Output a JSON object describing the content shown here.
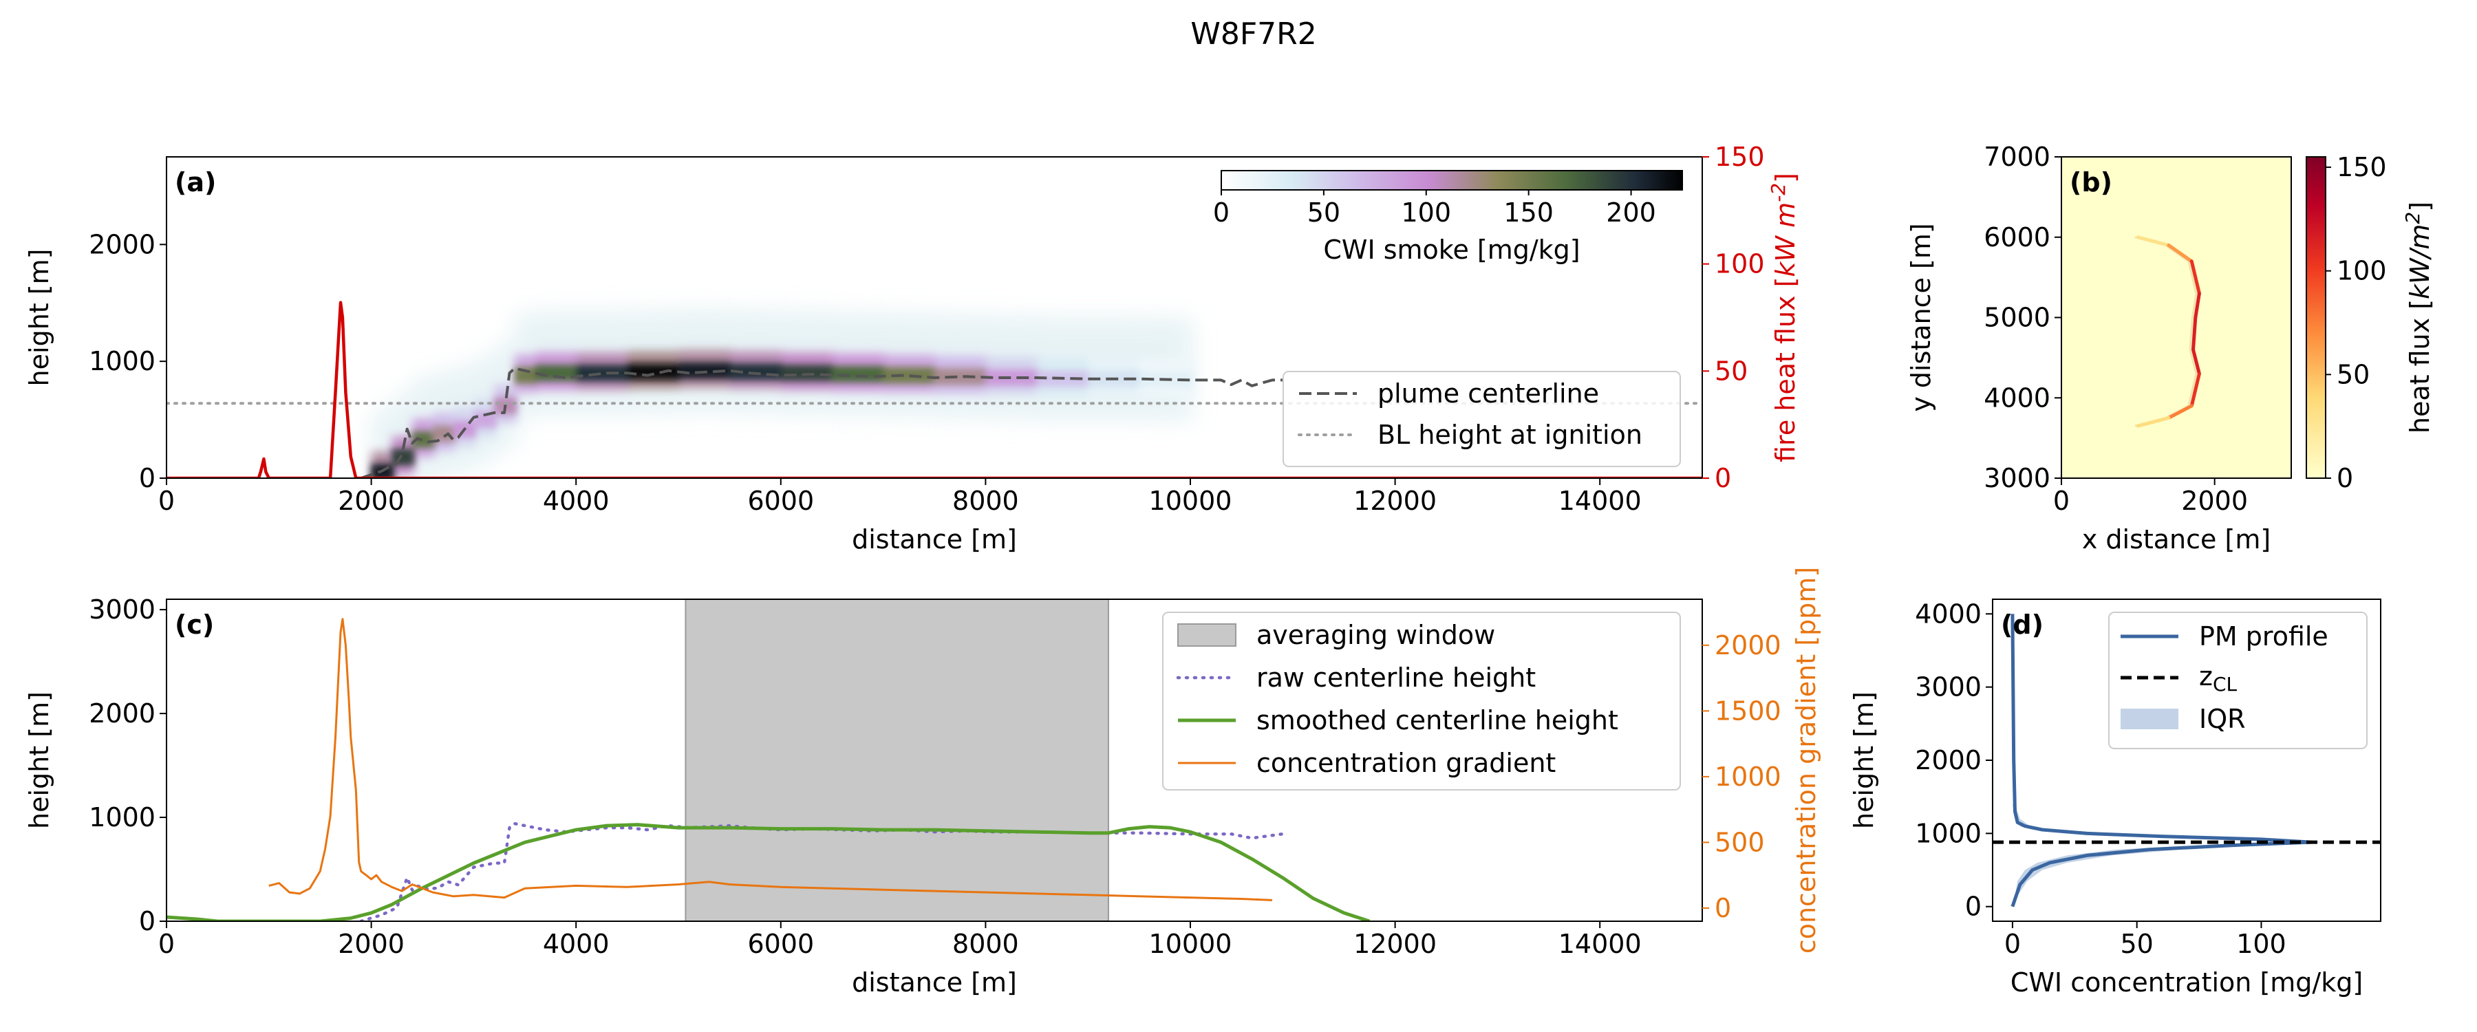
{
  "figure_title": "W8F7R2",
  "chart_data": [
    {
      "panel": "(a)",
      "type": "heatmap",
      "xlabel": "distance [m]",
      "ylabel": "height [m]",
      "y2label": "fire heat flux [kW m^-2]",
      "xlim": [
        0,
        15000
      ],
      "ylim": [
        0,
        2750
      ],
      "y2lim": [
        0,
        150
      ],
      "xticks": [
        0,
        2000,
        4000,
        6000,
        8000,
        10000,
        12000,
        14000
      ],
      "yticks": [
        0,
        1000,
        2000
      ],
      "y2ticks": [
        0,
        50,
        100,
        150
      ],
      "colorbar": {
        "label": "CWI smoke [mg/kg]",
        "ticks": [
          0,
          50,
          100,
          150,
          200
        ],
        "range": [
          0,
          225
        ],
        "orientation": "horizontal",
        "placement": "top-right"
      },
      "legend": {
        "placement": "right",
        "entries": [
          "plume centerline",
          "BL height at ignition"
        ]
      },
      "bl_height": 640,
      "smoke_plume": {
        "distance": [
          2000,
          2200,
          2400,
          2600,
          2800,
          3000,
          3200,
          3400,
          3600,
          4000,
          4500,
          5000,
          5500,
          6000,
          6500,
          7000,
          7500,
          8000,
          8500,
          9000,
          9500,
          10000
        ],
        "height": [
          50,
          180,
          330,
          380,
          420,
          500,
          620,
          880,
          900,
          900,
          910,
          920,
          910,
          900,
          890,
          880,
          870,
          860,
          850,
          850,
          845,
          840
        ],
        "peak_concentration": [
          210,
          190,
          160,
          120,
          90,
          80,
          110,
          150,
          170,
          200,
          220,
          210,
          200,
          190,
          170,
          150,
          120,
          90,
          60,
          40,
          25,
          15
        ]
      },
      "series": [
        {
          "name": "plume centerline",
          "style": "dashed",
          "color": "#555555",
          "x": [
            1900,
            2100,
            2250,
            2300,
            2350,
            2400,
            2450,
            2550,
            2650,
            2750,
            2800,
            2850,
            3000,
            3100,
            3200,
            3300,
            3350,
            3400,
            3500,
            3700,
            3900,
            4100,
            4300,
            4500,
            4700,
            4900,
            5100,
            5300,
            5500,
            5700,
            6000,
            6300,
            6600,
            6900,
            7200,
            7500,
            7800,
            8100,
            8500,
            9000,
            9500,
            10000,
            10300,
            10400,
            10500,
            10600,
            10800,
            10900
          ],
          "y": [
            0,
            60,
            130,
            200,
            420,
            300,
            340,
            310,
            320,
            380,
            330,
            350,
            520,
            540,
            560,
            560,
            900,
            940,
            920,
            880,
            860,
            880,
            900,
            900,
            880,
            920,
            900,
            910,
            920,
            900,
            880,
            890,
            880,
            870,
            880,
            860,
            870,
            860,
            860,
            850,
            850,
            840,
            840,
            800,
            840,
            790,
            840,
            840
          ]
        },
        {
          "name": "BL height at ignition",
          "style": "dotted",
          "color": "#a0a0a0",
          "x": [
            0,
            15000
          ],
          "y": [
            640,
            640
          ]
        },
        {
          "name": "fire heat flux",
          "axis": "right",
          "color": "#d40000",
          "x": [
            0,
            900,
            920,
            950,
            970,
            1000,
            1600,
            1650,
            1700,
            1720,
            1750,
            1800,
            1850,
            15000
          ],
          "y": [
            0,
            0,
            3,
            9,
            3,
            0,
            0,
            40,
            82,
            75,
            40,
            10,
            0,
            0
          ]
        }
      ]
    },
    {
      "panel": "(b)",
      "type": "heatmap",
      "xlabel": "x distance [m]",
      "ylabel": "y distance [m]",
      "xlim": [
        0,
        3000
      ],
      "ylim": [
        3000,
        7000
      ],
      "xticks": [
        0,
        2000
      ],
      "yticks": [
        3000,
        4000,
        5000,
        6000,
        7000
      ],
      "colorbar": {
        "label": "heat flux [kW/m^2]",
        "ticks": [
          0,
          50,
          100,
          150
        ],
        "range": [
          0,
          155
        ],
        "orientation": "vertical",
        "placement": "right"
      },
      "fire_front": {
        "x": [
          1000,
          1400,
          1700,
          1800,
          1750,
          1720,
          1800,
          1700,
          1400,
          1000
        ],
        "y": [
          6000,
          5900,
          5700,
          5300,
          5000,
          4600,
          4300,
          3900,
          3750,
          3650
        ],
        "heat_flux": [
          20,
          40,
          90,
          120,
          110,
          120,
          110,
          100,
          50,
          20
        ]
      }
    },
    {
      "panel": "(c)",
      "type": "line",
      "xlabel": "distance [m]",
      "ylabel": "height [m]",
      "y2label": "concentration gradient [ppm]",
      "xlim": [
        0,
        15000
      ],
      "ylim": [
        0,
        3100
      ],
      "y2lim": [
        -100,
        2350
      ],
      "xticks": [
        0,
        2000,
        4000,
        6000,
        8000,
        10000,
        12000,
        14000
      ],
      "yticks": [
        0,
        1000,
        2000,
        3000
      ],
      "y2ticks": [
        0,
        500,
        1000,
        1500,
        2000
      ],
      "averaging_window": [
        5070,
        9200
      ],
      "legend": {
        "placement": "top-right",
        "entries": [
          "averaging window",
          "raw centerline height",
          "smoothed centerline height",
          "concentration gradient"
        ]
      },
      "series": [
        {
          "name": "raw centerline height",
          "style": "dotted",
          "color": "#7b68c4",
          "x": [
            1900,
            2100,
            2250,
            2350,
            2400,
            2450,
            2550,
            2650,
            2750,
            2850,
            3000,
            3100,
            3200,
            3300,
            3350,
            3400,
            3500,
            3700,
            3900,
            4100,
            4300,
            4500,
            4700,
            4900,
            5100,
            5300,
            5500,
            5700,
            6000,
            6300,
            6600,
            6900,
            7200,
            7500,
            7800,
            8100,
            8500,
            9000,
            9500,
            10000,
            10400,
            10600,
            10900
          ],
          "y": [
            0,
            60,
            130,
            420,
            300,
            340,
            310,
            320,
            380,
            350,
            520,
            540,
            560,
            560,
            900,
            940,
            920,
            880,
            860,
            880,
            900,
            900,
            880,
            920,
            900,
            910,
            920,
            900,
            880,
            890,
            880,
            870,
            880,
            860,
            870,
            860,
            860,
            850,
            850,
            840,
            840,
            800,
            840
          ]
        },
        {
          "name": "smoothed centerline height",
          "color": "#5aa02c",
          "x": [
            0,
            300,
            500,
            1000,
            1500,
            1800,
            2000,
            2200,
            2500,
            3000,
            3500,
            4000,
            4300,
            4600,
            5000,
            5500,
            6000,
            6500,
            7000,
            7500,
            8000,
            8500,
            9000,
            9200,
            9400,
            9600,
            9800,
            10000,
            10300,
            10600,
            10900,
            11200,
            11500,
            11750
          ],
          "y": [
            40,
            20,
            0,
            0,
            0,
            30,
            80,
            160,
            320,
            560,
            760,
            880,
            920,
            930,
            900,
            900,
            890,
            890,
            880,
            880,
            870,
            860,
            850,
            850,
            890,
            910,
            900,
            860,
            760,
            600,
            420,
            220,
            80,
            0
          ]
        },
        {
          "name": "concentration gradient",
          "axis": "right",
          "color": "#e87511",
          "x": [
            1000,
            1100,
            1200,
            1300,
            1400,
            1500,
            1550,
            1600,
            1650,
            1700,
            1720,
            1750,
            1780,
            1800,
            1850,
            1880,
            1900,
            1950,
            2000,
            2050,
            2100,
            2200,
            2300,
            2400,
            2600,
            2800,
            3000,
            3300,
            3500,
            4000,
            4500,
            5000,
            5300,
            5500,
            6000,
            7000,
            8000,
            9000,
            10000,
            10500,
            10800
          ],
          "y": [
            170,
            190,
            120,
            110,
            150,
            280,
            450,
            700,
            1300,
            2100,
            2200,
            2000,
            1600,
            1300,
            900,
            350,
            280,
            250,
            220,
            250,
            200,
            160,
            130,
            180,
            120,
            90,
            100,
            80,
            150,
            170,
            160,
            180,
            200,
            180,
            160,
            140,
            120,
            100,
            80,
            70,
            60
          ]
        }
      ]
    },
    {
      "panel": "(d)",
      "type": "line",
      "xlabel": "CWI concentration [mg/kg]",
      "ylabel": "height [m]",
      "xlim": [
        -8,
        148
      ],
      "ylim": [
        -200,
        4200
      ],
      "xticks": [
        0,
        50,
        100
      ],
      "yticks": [
        0,
        1000,
        2000,
        3000,
        4000
      ],
      "legend": {
        "placement": "top-right",
        "entries": [
          "PM profile",
          "zCL",
          "IQR"
        ]
      },
      "z_CL": 880,
      "series": [
        {
          "name": "PM profile",
          "color": "#3a66a0",
          "x": [
            0,
            1,
            3,
            8,
            15,
            30,
            55,
            90,
            120,
            100,
            60,
            30,
            12,
            5,
            2,
            1,
            0.5,
            0
          ],
          "y": [
            0,
            100,
            300,
            500,
            600,
            700,
            780,
            840,
            880,
            920,
            960,
            1000,
            1050,
            1100,
            1150,
            1300,
            2000,
            4000
          ]
        },
        {
          "name": "IQR",
          "color": "#c3d2e6",
          "x_low": [
            0,
            1,
            2,
            5,
            10,
            22,
            42,
            75,
            105,
            85,
            48,
            22,
            8,
            3,
            1,
            0
          ],
          "x_high": [
            0,
            2,
            6,
            12,
            22,
            40,
            68,
            100,
            125,
            110,
            72,
            38,
            16,
            7,
            3,
            1
          ],
          "y": [
            0,
            150,
            350,
            500,
            600,
            700,
            780,
            840,
            880,
            920,
            960,
            1000,
            1050,
            1100,
            1200,
            1400
          ]
        }
      ]
    }
  ]
}
